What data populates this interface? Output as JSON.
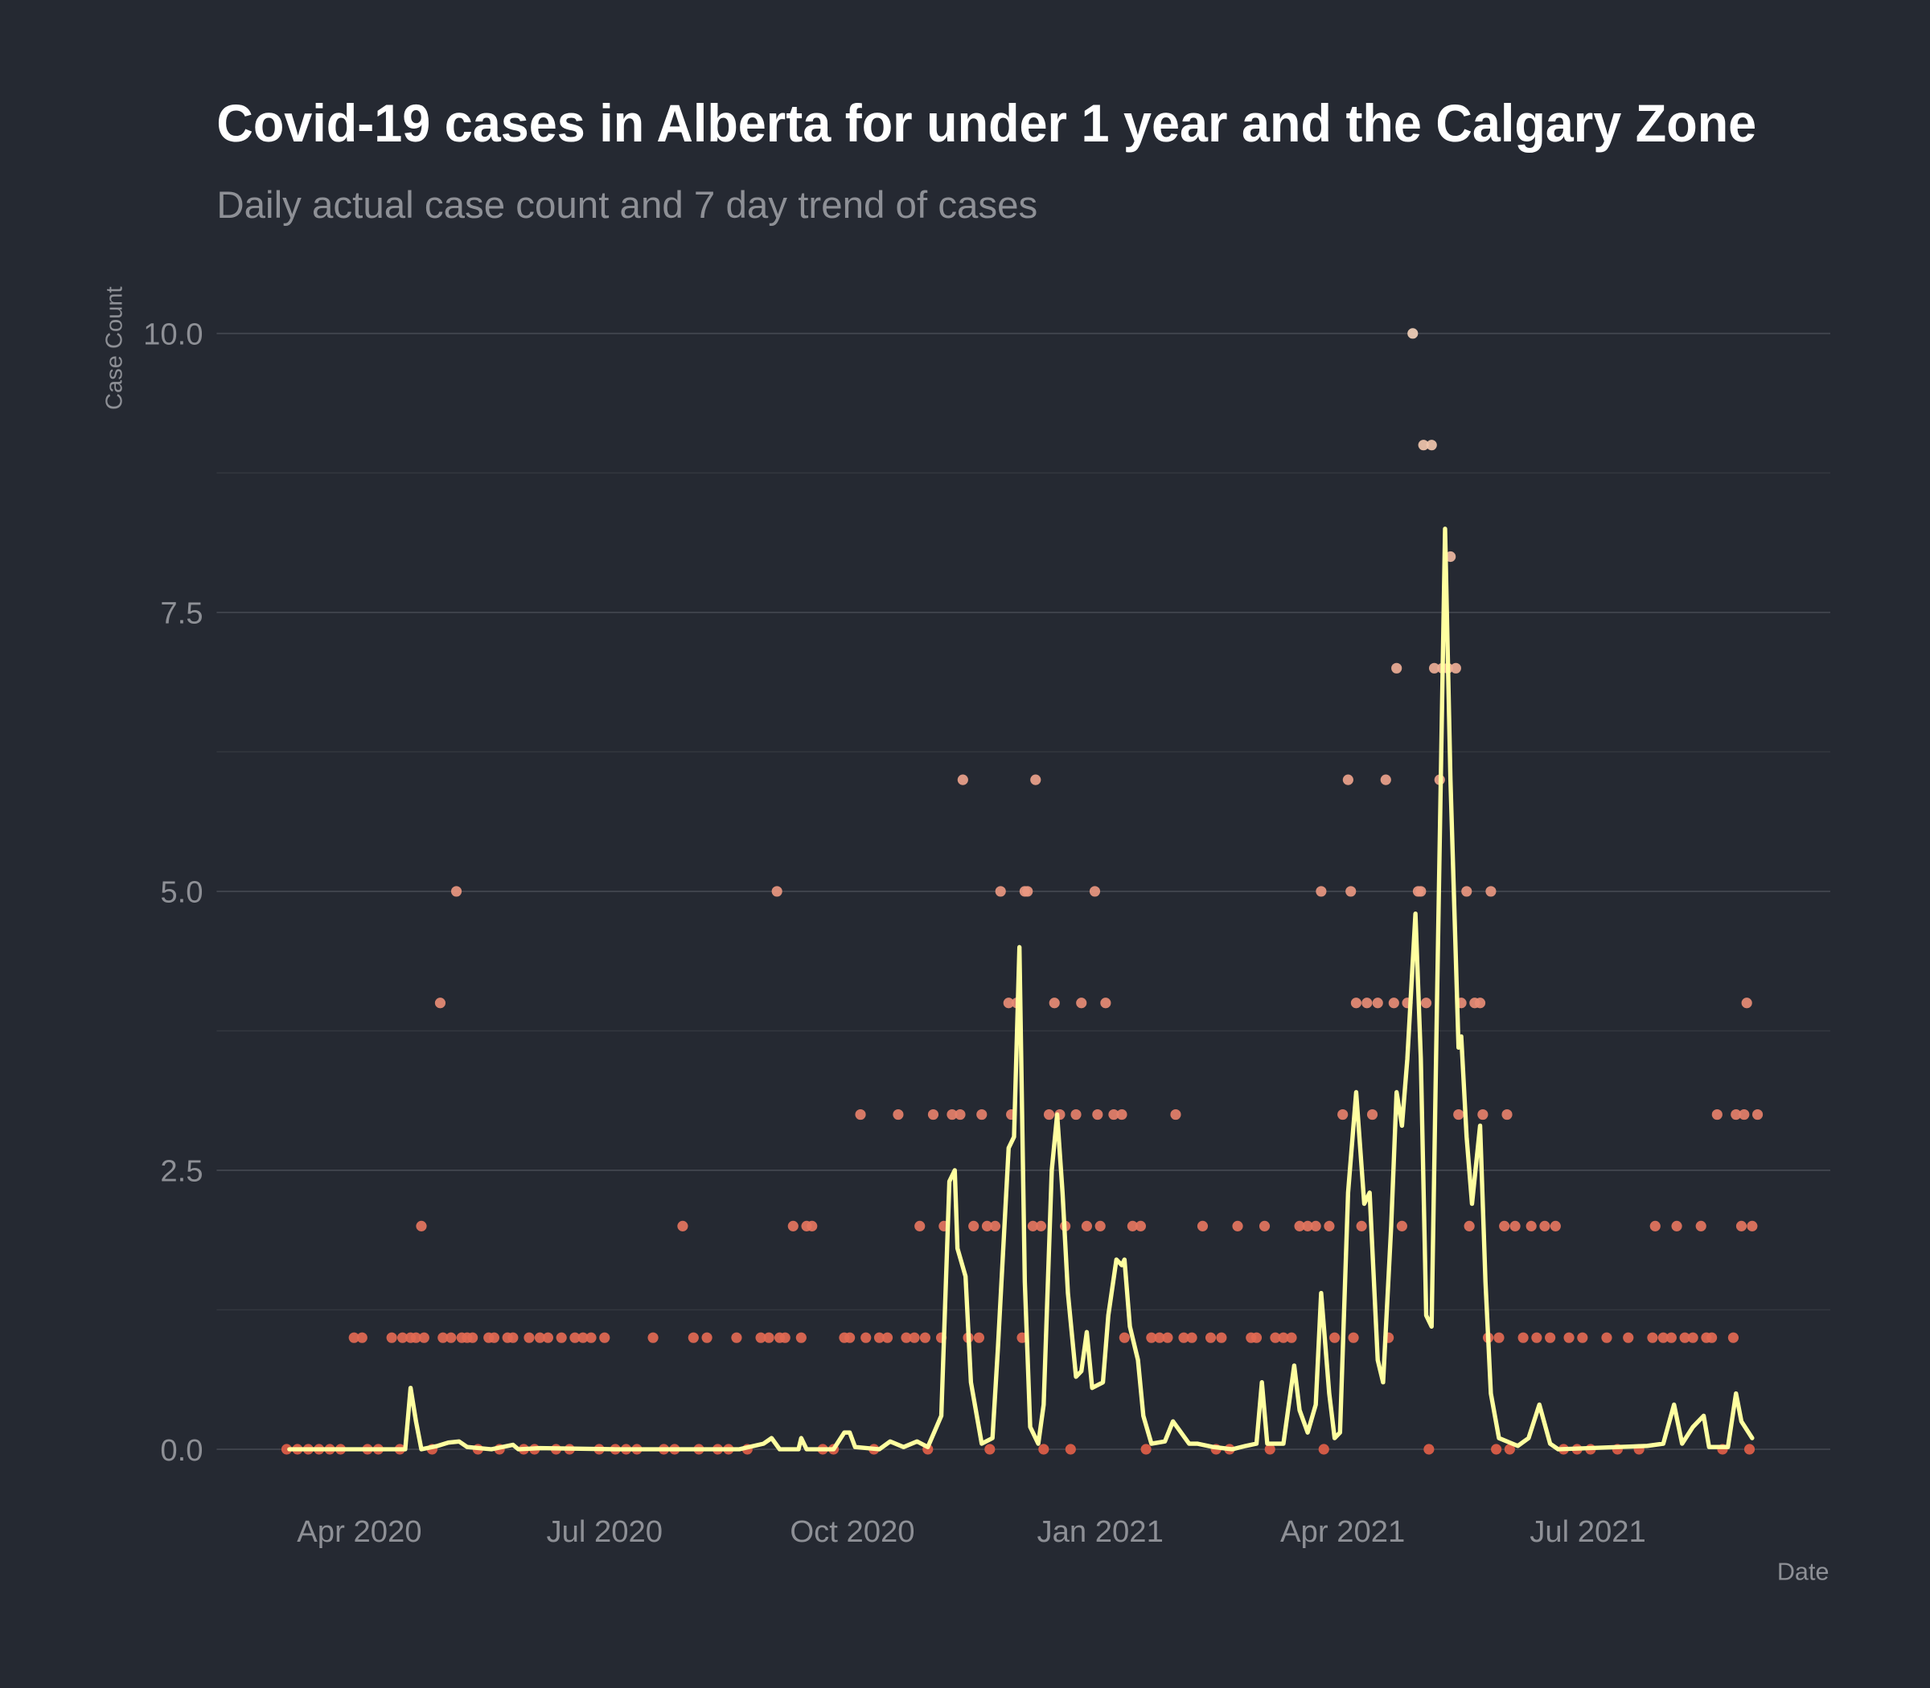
{
  "chart_data": {
    "type": "scatter",
    "title": "Covid-19 cases in Alberta for under 1 year and the Calgary Zone",
    "subtitle": "Daily actual case count and 7 day trend of cases",
    "y_label": "Case Count",
    "x_label": "Date",
    "xlim": [
      "2020-02-08",
      "2021-09-29"
    ],
    "ylim": [
      -0.35,
      10.2
    ],
    "xticks": [
      {
        "value": "2020-04-01",
        "label": "Apr 2020"
      },
      {
        "value": "2020-07-01",
        "label": "Jul 2020"
      },
      {
        "value": "2020-10-01",
        "label": "Oct 2020"
      },
      {
        "value": "2021-01-01",
        "label": "Jan 2021"
      },
      {
        "value": "2021-04-01",
        "label": "Apr 2021"
      },
      {
        "value": "2021-07-01",
        "label": "Jul 2021"
      }
    ],
    "yticks": [
      {
        "value": 0,
        "label": "0.0"
      },
      {
        "value": 2.5,
        "label": "2.5"
      },
      {
        "value": 5,
        "label": "5.0"
      },
      {
        "value": 7.5,
        "label": "7.5"
      },
      {
        "value": 10,
        "label": "10.0"
      }
    ],
    "y_minor_grid": [
      1.25,
      3.75,
      6.25,
      8.75
    ],
    "grid": true,
    "points": {
      "color_low": "#e05e48",
      "color_high": "#f2d0b8",
      "x": [
        "2020-03-30",
        "2020-04-02",
        "2020-04-13",
        "2020-04-17",
        "2020-04-20",
        "2020-04-22",
        "2020-04-24",
        "2020-04-25",
        "2020-05-01",
        "2020-05-02",
        "2020-05-05",
        "2020-05-07",
        "2020-05-09",
        "2020-05-11",
        "2020-05-13",
        "2020-05-19",
        "2020-05-21",
        "2020-05-26",
        "2020-05-28",
        "2020-06-03",
        "2020-06-07",
        "2020-06-10",
        "2020-06-15",
        "2020-06-20",
        "2020-06-23",
        "2020-06-26",
        "2020-07-01",
        "2020-07-19",
        "2020-07-30",
        "2020-08-03",
        "2020-08-08",
        "2020-08-19",
        "2020-08-28",
        "2020-08-31",
        "2020-09-03",
        "2020-09-04",
        "2020-09-06",
        "2020-09-09",
        "2020-09-12",
        "2020-09-14",
        "2020-09-16",
        "2020-09-28",
        "2020-09-30",
        "2020-10-04",
        "2020-10-06",
        "2020-10-11",
        "2020-10-14",
        "2020-10-18",
        "2020-10-21",
        "2020-10-24",
        "2020-10-26",
        "2020-10-28",
        "2020-10-31",
        "2020-11-03",
        "2020-11-04",
        "2020-11-07",
        "2020-11-10",
        "2020-11-11",
        "2020-11-13",
        "2020-11-15",
        "2020-11-17",
        "2020-11-18",
        "2020-11-20",
        "2020-11-23",
        "2020-11-25",
        "2020-11-28",
        "2020-11-29",
        "2020-12-01",
        "2020-12-03",
        "2020-12-04",
        "2020-12-05",
        "2020-12-07",
        "2020-12-08",
        "2020-12-10",
        "2020-12-13",
        "2020-12-15",
        "2020-12-17",
        "2020-12-19",
        "2020-12-23",
        "2020-12-25",
        "2020-12-27",
        "2020-12-30",
        "2020-12-31",
        "2021-01-01",
        "2021-01-03",
        "2021-01-06",
        "2021-01-09",
        "2021-01-10",
        "2021-01-13",
        "2021-01-16",
        "2021-01-20",
        "2021-01-23",
        "2021-01-26",
        "2021-01-29",
        "2021-02-01",
        "2021-02-04",
        "2021-02-08",
        "2021-02-11",
        "2021-02-15",
        "2021-02-21",
        "2021-02-26",
        "2021-02-28",
        "2021-03-03",
        "2021-03-07",
        "2021-03-10",
        "2021-03-13",
        "2021-03-16",
        "2021-03-19",
        "2021-03-22",
        "2021-03-24",
        "2021-03-27",
        "2021-03-29",
        "2021-04-01",
        "2021-04-03",
        "2021-04-04",
        "2021-04-05",
        "2021-04-06",
        "2021-04-08",
        "2021-04-10",
        "2021-04-12",
        "2021-04-14",
        "2021-04-17",
        "2021-04-18",
        "2021-04-20",
        "2021-04-21",
        "2021-04-23",
        "2021-04-25",
        "2021-04-27",
        "2021-04-29",
        "2021-04-30",
        "2021-05-01",
        "2021-05-02",
        "2021-05-03",
        "2021-05-04",
        "2021-05-05",
        "2021-05-07",
        "2021-05-08",
        "2021-05-10",
        "2021-05-11",
        "2021-05-13",
        "2021-05-14",
        "2021-05-15",
        "2021-05-17",
        "2021-05-18",
        "2021-05-20",
        "2021-05-22",
        "2021-05-23",
        "2021-05-25",
        "2021-05-26",
        "2021-05-29",
        "2021-05-31",
        "2021-06-01",
        "2021-06-04",
        "2021-06-07",
        "2021-06-10",
        "2021-06-12",
        "2021-06-15",
        "2021-06-17",
        "2021-06-19",
        "2021-06-24",
        "2021-06-29",
        "2021-07-08",
        "2021-07-16",
        "2021-07-25",
        "2021-07-26",
        "2021-07-29",
        "2021-08-01",
        "2021-08-03",
        "2021-08-06",
        "2021-08-09",
        "2021-08-12",
        "2021-08-14",
        "2021-08-16",
        "2021-08-18",
        "2021-08-24",
        "2021-08-25",
        "2021-08-27",
        "2021-08-28",
        "2021-08-29",
        "2021-08-31",
        "2021-09-02",
        "2020-03-05",
        "2020-03-09",
        "2020-03-13",
        "2020-03-17",
        "2020-03-21",
        "2020-03-25",
        "2020-04-04",
        "2020-04-08",
        "2020-04-16",
        "2020-04-28",
        "2020-05-15",
        "2020-05-23",
        "2020-06-01",
        "2020-06-05",
        "2020-06-13",
        "2020-06-18",
        "2020-06-29",
        "2020-07-05",
        "2020-07-09",
        "2020-07-13",
        "2020-07-23",
        "2020-07-27",
        "2020-08-05",
        "2020-08-12",
        "2020-08-16",
        "2020-08-23",
        "2020-09-20",
        "2020-09-24",
        "2020-10-09",
        "2020-10-29",
        "2020-11-21",
        "2020-12-11",
        "2020-12-21",
        "2021-01-18",
        "2021-02-13",
        "2021-02-18",
        "2021-03-05",
        "2021-03-25",
        "2021-05-28",
        "2021-06-02",
        "2021-06-22",
        "2021-06-27",
        "2021-07-02",
        "2021-07-12",
        "2021-07-20",
        "2021-08-20",
        "2021-08-30"
      ],
      "values": [
        1,
        1,
        1,
        1,
        1,
        1,
        2,
        1,
        4,
        1,
        1,
        5,
        1,
        1,
        1,
        1,
        1,
        1,
        1,
        1,
        1,
        1,
        1,
        1,
        1,
        1,
        1,
        1,
        2,
        1,
        1,
        1,
        1,
        1,
        5,
        1,
        1,
        2,
        1,
        2,
        2,
        1,
        1,
        3,
        1,
        1,
        1,
        3,
        1,
        1,
        2,
        1,
        3,
        1,
        2,
        3,
        3,
        6,
        1,
        2,
        1,
        3,
        2,
        2,
        5,
        4,
        3,
        4,
        1,
        5,
        5,
        2,
        6,
        2,
        3,
        4,
        3,
        2,
        3,
        4,
        2,
        5,
        3,
        2,
        4,
        3,
        3,
        1,
        2,
        2,
        1,
        1,
        1,
        3,
        1,
        1,
        2,
        1,
        1,
        2,
        1,
        1,
        2,
        1,
        1,
        1,
        2,
        2,
        2,
        5,
        2,
        1,
        3,
        6,
        5,
        1,
        4,
        2,
        4,
        3,
        4,
        6,
        1,
        4,
        7,
        2,
        4,
        10,
        5,
        5,
        9,
        4,
        0,
        9,
        7,
        6,
        7,
        7,
        8,
        7,
        3,
        4,
        5,
        2,
        4,
        4,
        3,
        1,
        5,
        1,
        2,
        3,
        2,
        1,
        2,
        1,
        2,
        1,
        2,
        1,
        1,
        1,
        1,
        1,
        2,
        1,
        1,
        2,
        1,
        1,
        2,
        1,
        1,
        3,
        1,
        3,
        2,
        3,
        4,
        2,
        3,
        0,
        0,
        0,
        0,
        0,
        0,
        0,
        0,
        0,
        0,
        0,
        0,
        0,
        0,
        0,
        0,
        0,
        0,
        0,
        0,
        0,
        0,
        0,
        0,
        0,
        0,
        0,
        0,
        0,
        0,
        0,
        0,
        0,
        0,
        0,
        0,
        0,
        0,
        0,
        0,
        0,
        0,
        0,
        0,
        0,
        0,
        0
      ]
    },
    "trend": {
      "color": "#ffffa0",
      "x": [
        "2020-03-06",
        "2020-04-18",
        "2020-04-20",
        "2020-04-22",
        "2020-04-24",
        "2020-04-30",
        "2020-05-04",
        "2020-05-08",
        "2020-05-11",
        "2020-05-20",
        "2020-05-28",
        "2020-05-30",
        "2020-06-07",
        "2020-07-05",
        "2020-08-20",
        "2020-08-29",
        "2020-09-01",
        "2020-09-04",
        "2020-09-11",
        "2020-09-12",
        "2020-09-14",
        "2020-09-24",
        "2020-09-28",
        "2020-09-30",
        "2020-10-02",
        "2020-10-11",
        "2020-10-15",
        "2020-10-20",
        "2020-10-25",
        "2020-10-29",
        "2020-11-03",
        "2020-11-06",
        "2020-11-08",
        "2020-11-09",
        "2020-11-12",
        "2020-11-14",
        "2020-11-18",
        "2020-11-22",
        "2020-11-24",
        "2020-11-28",
        "2020-11-30",
        "2020-12-02",
        "2020-12-04",
        "2020-12-06",
        "2020-12-09",
        "2020-12-11",
        "2020-12-14",
        "2020-12-16",
        "2020-12-18",
        "2020-12-20",
        "2020-12-23",
        "2020-12-25",
        "2020-12-27",
        "2020-12-29",
        "2021-01-02",
        "2021-01-04",
        "2021-01-07",
        "2021-01-09",
        "2021-01-10",
        "2021-01-12",
        "2021-01-15",
        "2021-01-17",
        "2021-01-20",
        "2021-01-25",
        "2021-01-28",
        "2021-01-31",
        "2021-02-03",
        "2021-02-06",
        "2021-02-12",
        "2021-02-19",
        "2021-02-24",
        "2021-02-28",
        "2021-03-02",
        "2021-03-04",
        "2021-03-10",
        "2021-03-14",
        "2021-03-16",
        "2021-03-19",
        "2021-03-22",
        "2021-03-24",
        "2021-03-27",
        "2021-03-29",
        "2021-03-31",
        "2021-04-03",
        "2021-04-06",
        "2021-04-09",
        "2021-04-11",
        "2021-04-14",
        "2021-04-16",
        "2021-04-19",
        "2021-04-21",
        "2021-04-23",
        "2021-04-25",
        "2021-04-28",
        "2021-04-30",
        "2021-05-02",
        "2021-05-04",
        "2021-05-06",
        "2021-05-09",
        "2021-05-11",
        "2021-05-14",
        "2021-05-15",
        "2021-05-17",
        "2021-05-19",
        "2021-05-22",
        "2021-05-24",
        "2021-05-26",
        "2021-05-29",
        "2021-06-05",
        "2021-06-09",
        "2021-06-13",
        "2021-06-17",
        "2021-06-20",
        "2021-07-23",
        "2021-07-29",
        "2021-08-02",
        "2021-08-05",
        "2021-08-09",
        "2021-08-13",
        "2021-08-15",
        "2021-08-22",
        "2021-08-25",
        "2021-08-27",
        "2021-08-31"
      ],
      "values": [
        0,
        0,
        0.55,
        0.25,
        0,
        0.03,
        0.06,
        0.07,
        0.02,
        0,
        0.04,
        0,
        0.01,
        0,
        0,
        0.05,
        0.1,
        0,
        0,
        0.1,
        0,
        0,
        0.15,
        0.15,
        0.02,
        0,
        0.07,
        0.02,
        0.07,
        0.02,
        0.3,
        2.4,
        2.5,
        1.8,
        1.55,
        0.6,
        0.05,
        0.1,
        0.9,
        2.7,
        2.8,
        4.5,
        1.5,
        0.2,
        0.05,
        0.4,
        2.5,
        3,
        2.3,
        1.4,
        0.65,
        0.7,
        1.05,
        0.55,
        0.6,
        1.2,
        1.7,
        1.65,
        1.7,
        1.1,
        0.8,
        0.3,
        0.05,
        0.07,
        0.25,
        0.15,
        0.05,
        0.05,
        0.02,
        0,
        0.03,
        0.05,
        0.6,
        0.05,
        0.05,
        0.75,
        0.35,
        0.15,
        0.4,
        1.4,
        0.5,
        0.1,
        0.15,
        2.3,
        3.2,
        2.2,
        2.3,
        0.8,
        0.6,
        2,
        3.2,
        2.9,
        3.5,
        4.8,
        3.5,
        1.2,
        1.1,
        4,
        8.25,
        6,
        3.6,
        3.7,
        2.8,
        2.2,
        2.9,
        1.5,
        0.5,
        0.1,
        0.03,
        0.1,
        0.4,
        0.05,
        0,
        0.03,
        0.05,
        0.4,
        0.05,
        0.2,
        0.3,
        0.02,
        0.02,
        0.5,
        0.25,
        0.1
      ]
    }
  }
}
